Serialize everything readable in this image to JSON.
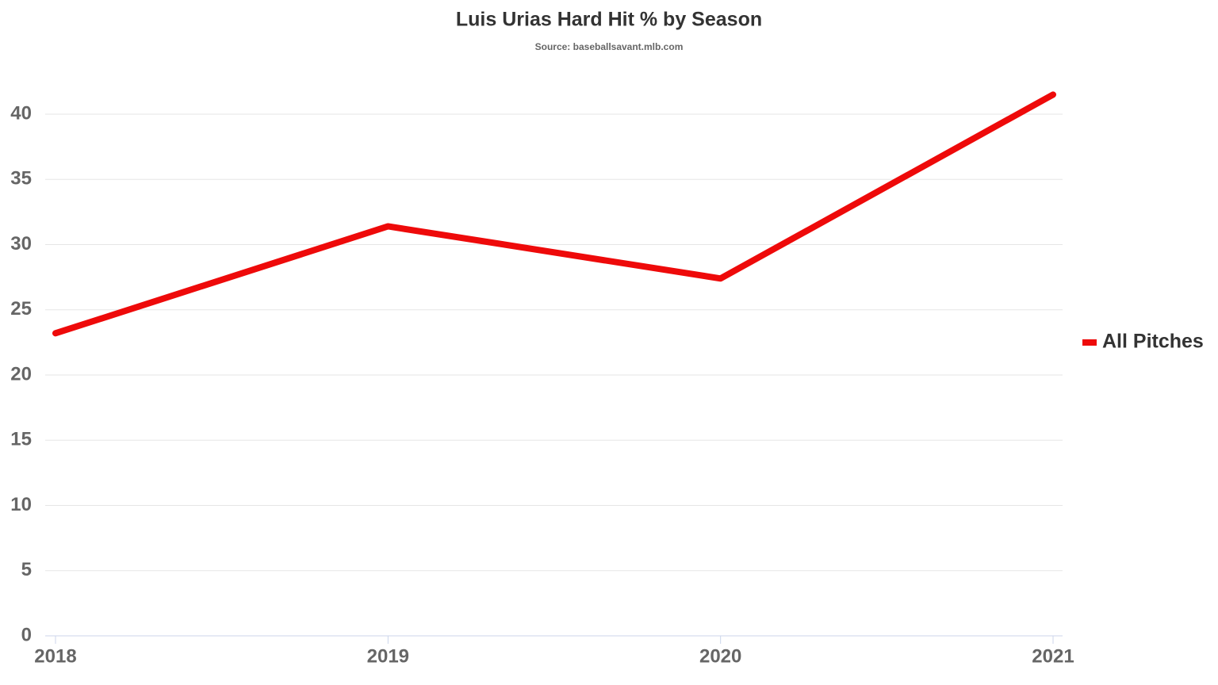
{
  "chart_data": {
    "type": "line",
    "title": "Luis Urias Hard Hit % by Season",
    "subtitle": "Source: baseballsavant.mlb.com",
    "categories": [
      "2018",
      "2019",
      "2020",
      "2021"
    ],
    "series": [
      {
        "name": "All Pitches",
        "color": "#ee0a0a",
        "values": [
          23.2,
          31.4,
          27.4,
          41.5
        ]
      }
    ],
    "ylim": [
      0,
      42
    ],
    "yticks": [
      0,
      5,
      10,
      15,
      20,
      25,
      30,
      35,
      40
    ],
    "grid": true,
    "legend": "right"
  }
}
